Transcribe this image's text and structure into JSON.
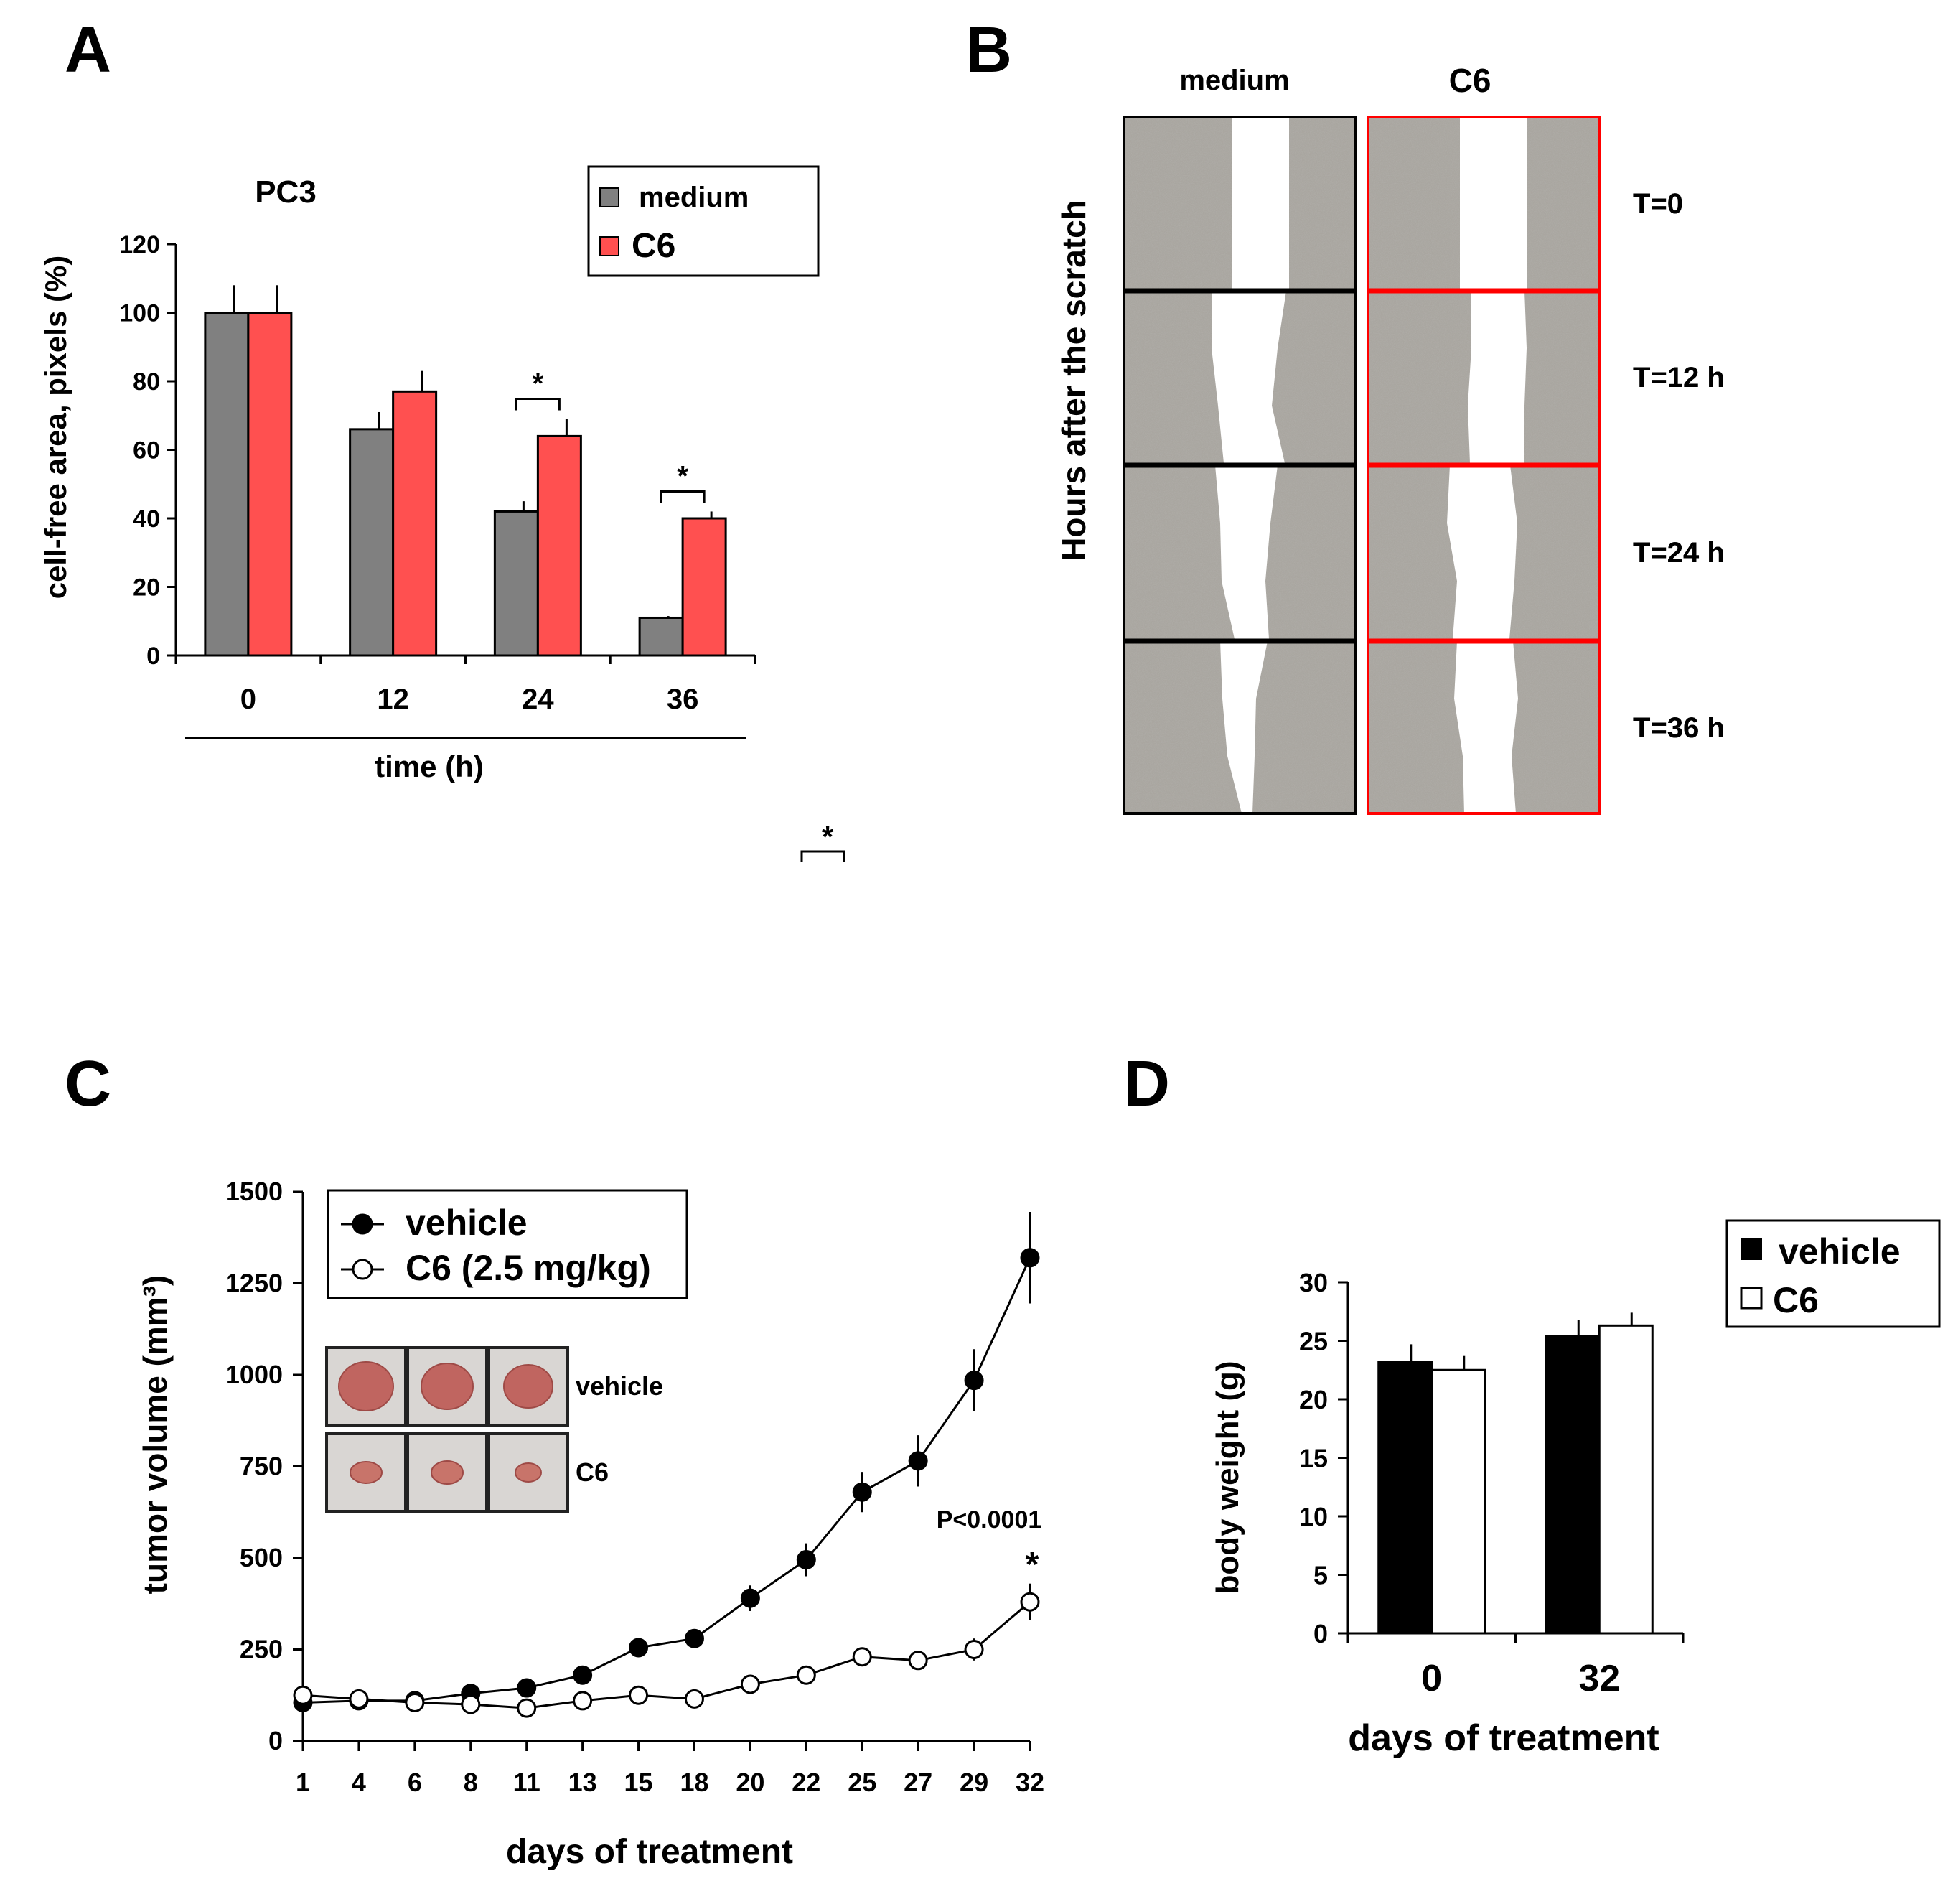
{
  "panels": {
    "a": {
      "letter": "A"
    },
    "b": {
      "letter": "B"
    },
    "c": {
      "letter": "C"
    },
    "d": {
      "letter": "D"
    }
  },
  "stray_marker": "*",
  "chart_data": [
    {
      "id": "A",
      "type": "bar",
      "title": "PC3",
      "xlabel": "time (h)",
      "ylabel": "cell-free area, pixels (%)",
      "categories": [
        "0",
        "12",
        "24",
        "36"
      ],
      "ylim": [
        0,
        120
      ],
      "yticks": [
        "0",
        "20",
        "40",
        "60",
        "80",
        "100",
        "120"
      ],
      "series": [
        {
          "name": "medium",
          "color": "#808080",
          "values": [
            100,
            66,
            42,
            11
          ],
          "errors": [
            8,
            5,
            3,
            0.5
          ]
        },
        {
          "name": "C6",
          "color": "#ff5050",
          "values": [
            100,
            77,
            64,
            40
          ],
          "errors": [
            8,
            6,
            5,
            2
          ]
        }
      ],
      "significance": [
        {
          "category": "24",
          "label": "*"
        },
        {
          "category": "36",
          "label": "*"
        }
      ],
      "legend_position": "top-right"
    },
    {
      "id": "B",
      "type": "image-grid",
      "columns": [
        "medium",
        "C6"
      ],
      "column_colors": [
        "#000000",
        "#ff0000"
      ],
      "rows": [
        "T=0",
        "T=12 h",
        "T=24 h",
        "T=36 h"
      ],
      "ylabel": "Hours after the scratch"
    },
    {
      "id": "C",
      "type": "line",
      "xlabel": "days of treatment",
      "ylabel": "tumor volume (mm³)",
      "x": [
        "1",
        "4",
        "6",
        "8",
        "11",
        "13",
        "15",
        "18",
        "20",
        "22",
        "25",
        "27",
        "29",
        "32"
      ],
      "ylim": [
        0,
        1500
      ],
      "yticks": [
        "0",
        "250",
        "500",
        "750",
        "1000",
        "1250",
        "1500"
      ],
      "series": [
        {
          "name": "vehicle",
          "marker": "filled-circle",
          "values": [
            105,
            110,
            110,
            130,
            145,
            180,
            255,
            280,
            390,
            495,
            680,
            765,
            985,
            1320
          ],
          "errors": [
            8,
            8,
            8,
            10,
            12,
            15,
            18,
            20,
            35,
            45,
            55,
            70,
            85,
            125
          ]
        },
        {
          "name": "C6 (2.5 mg/kg)",
          "marker": "open-circle",
          "values": [
            125,
            115,
            105,
            100,
            90,
            110,
            125,
            115,
            155,
            180,
            230,
            220,
            250,
            380
          ],
          "errors": [
            8,
            8,
            8,
            8,
            8,
            10,
            12,
            12,
            15,
            18,
            25,
            25,
            30,
            50
          ]
        }
      ],
      "annotation_text": "P<0.0001",
      "annotation_star": "*",
      "inset_labels": [
        "vehicle",
        "C6"
      ],
      "legend_position": "top-left"
    },
    {
      "id": "D",
      "type": "bar",
      "xlabel": "days of treatment",
      "ylabel": "body weight (g)",
      "categories": [
        "0",
        "32"
      ],
      "ylim": [
        0,
        30
      ],
      "yticks": [
        "0",
        "5",
        "10",
        "15",
        "20",
        "25",
        "30"
      ],
      "series": [
        {
          "name": "vehicle",
          "color": "#000000",
          "values": [
            23.2,
            25.4
          ],
          "errors": [
            1.5,
            1.4
          ]
        },
        {
          "name": "C6",
          "color": "#ffffff",
          "values": [
            22.5,
            26.3
          ],
          "errors": [
            1.2,
            1.1
          ]
        }
      ],
      "legend_position": "top-right"
    }
  ]
}
